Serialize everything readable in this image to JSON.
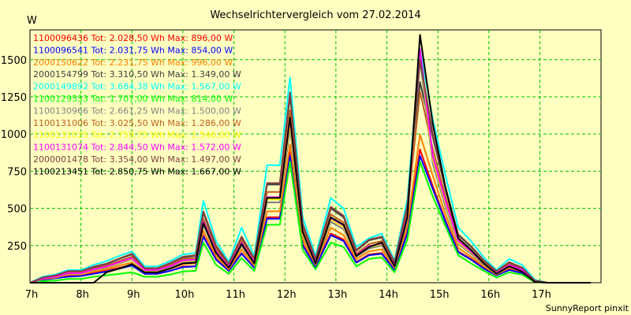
{
  "chart_data": {
    "type": "line",
    "title": "Wechselrichtervergleich vom 27.02.2014",
    "ylabel": "W",
    "footer": "SunnyReport pinxit",
    "ylim": [
      0,
      1700
    ],
    "xlim": [
      7,
      18.2
    ],
    "y_ticks": [
      250,
      500,
      750,
      1000,
      1250,
      1500
    ],
    "y_tick_labels": [
      "250",
      "500",
      "750",
      "1000",
      "1250",
      "1500"
    ],
    "x_ticks": [
      7,
      8,
      9,
      10,
      11,
      12,
      13,
      14,
      15,
      16,
      17
    ],
    "x_tick_labels": [
      "7h",
      "8h",
      "9h",
      "10h",
      "11h",
      "12h",
      "13h",
      "14h",
      "15h",
      "16h",
      "17h"
    ],
    "grid": true,
    "legend_placement": "top-left",
    "x": [
      7.0,
      7.25,
      7.5,
      7.75,
      8.0,
      8.25,
      8.5,
      8.75,
      9.0,
      9.25,
      9.5,
      9.75,
      10.0,
      10.25,
      10.4,
      10.65,
      10.9,
      11.15,
      11.4,
      11.65,
      11.9,
      12.1,
      12.35,
      12.6,
      12.9,
      13.15,
      13.4,
      13.65,
      13.9,
      14.15,
      14.4,
      14.65,
      14.9,
      15.15,
      15.4,
      15.65,
      15.9,
      16.15,
      16.4,
      16.65,
      16.9,
      17.15,
      17.4,
      17.65,
      18.0
    ],
    "series": [
      {
        "name": "1100096436 Tot: 2.028,50 Wh Max: 896,00 W",
        "color": "#ff0000",
        "values": [
          0,
          20,
          30,
          45,
          45,
          65,
          80,
          100,
          120,
          60,
          60,
          80,
          110,
          110,
          320,
          160,
          80,
          200,
          100,
          440,
          440,
          880,
          260,
          110,
          330,
          290,
          140,
          190,
          200,
          90,
          340,
          896,
          650,
          420,
          210,
          160,
          100,
          50,
          90,
          70,
          10,
          0,
          0,
          0,
          0
        ]
      },
      {
        "name": "1100096541 Tot: 2.031,75 Wh Max: 854,00 W",
        "color": "#0000ff",
        "values": [
          0,
          20,
          30,
          40,
          45,
          60,
          75,
          95,
          115,
          60,
          60,
          80,
          105,
          110,
          310,
          155,
          80,
          195,
          100,
          430,
          430,
          854,
          250,
          105,
          320,
          280,
          135,
          185,
          195,
          85,
          330,
          854,
          630,
          410,
          205,
          155,
          95,
          50,
          85,
          65,
          10,
          0,
          0,
          0,
          0
        ]
      },
      {
        "name": "2000150622 Tot: 2.231,75 Wh Max: 996,00 W",
        "color": "#ff8000",
        "values": [
          0,
          25,
          35,
          55,
          55,
          75,
          90,
          115,
          135,
          70,
          70,
          95,
          125,
          130,
          350,
          180,
          90,
          225,
          115,
          480,
          480,
          930,
          290,
          120,
          370,
          320,
          160,
          210,
          225,
          100,
          380,
          996,
          720,
          460,
          235,
          175,
          110,
          55,
          100,
          75,
          10,
          0,
          0,
          0,
          0
        ]
      },
      {
        "name": "2000154799 Tot: 3.310,50 Wh Max: 1.349,00 W",
        "color": "#404040",
        "values": [
          0,
          35,
          50,
          75,
          75,
          105,
          125,
          160,
          190,
          95,
          95,
          130,
          170,
          180,
          470,
          245,
          125,
          305,
          160,
          660,
          660,
          1260,
          390,
          160,
          500,
          440,
          215,
          285,
          305,
          135,
          515,
          1349,
          980,
          630,
          320,
          240,
          150,
          75,
          135,
          100,
          15,
          0,
          0,
          0,
          0
        ]
      },
      {
        "name": "2000149892 Tot: 3.684,38 Wh Max: 1.567,00 W",
        "color": "#00ffff",
        "values": [
          0,
          40,
          55,
          85,
          85,
          120,
          145,
          180,
          210,
          110,
          110,
          145,
          190,
          200,
          550,
          280,
          140,
          370,
          180,
          790,
          790,
          1380,
          440,
          180,
          570,
          500,
          240,
          300,
          330,
          150,
          560,
          1567,
          1100,
          720,
          370,
          280,
          170,
          85,
          160,
          120,
          20,
          0,
          0,
          0,
          0
        ]
      },
      {
        "name": "1100129553 Tot: 1.707,00 Wh Max: 814,00 W",
        "color": "#00ff00",
        "values": [
          0,
          10,
          15,
          25,
          25,
          40,
          50,
          60,
          70,
          40,
          40,
          55,
          75,
          80,
          270,
          120,
          60,
          165,
          80,
          390,
          390,
          814,
          220,
          90,
          270,
          240,
          110,
          160,
          170,
          70,
          290,
          814,
          580,
          380,
          185,
          130,
          80,
          35,
          70,
          55,
          5,
          0,
          0,
          0,
          0
        ]
      },
      {
        "name": "1100130966 Tot: 2.661,25 Wh Max: 1.500,00 W",
        "color": "#808080",
        "values": [
          0,
          30,
          40,
          60,
          60,
          85,
          100,
          130,
          155,
          80,
          80,
          105,
          140,
          145,
          390,
          200,
          100,
          250,
          130,
          540,
          540,
          1030,
          320,
          130,
          410,
          360,
          175,
          230,
          250,
          110,
          420,
          1500,
          800,
          510,
          260,
          195,
          120,
          60,
          110,
          80,
          10,
          0,
          0,
          0,
          0
        ]
      },
      {
        "name": "1100131006 Tot: 3.025,50 Wh Max: 1.286,00 W",
        "color": "#c06020",
        "values": [
          0,
          30,
          45,
          70,
          70,
          95,
          115,
          145,
          175,
          90,
          90,
          120,
          160,
          165,
          430,
          225,
          115,
          285,
          145,
          610,
          610,
          1160,
          360,
          145,
          460,
          405,
          195,
          260,
          280,
          125,
          475,
          1286,
          900,
          580,
          295,
          220,
          135,
          70,
          125,
          90,
          15,
          0,
          0,
          0,
          0
        ]
      },
      {
        "name": "1100131025 Tot: 2.759,75 Wh Max: 1.546,00 W",
        "color": "#ffff00",
        "values": [
          0,
          28,
          42,
          62,
          62,
          88,
          105,
          135,
          160,
          82,
          82,
          110,
          145,
          150,
          400,
          205,
          105,
          260,
          135,
          560,
          560,
          1070,
          330,
          135,
          425,
          375,
          180,
          240,
          260,
          115,
          440,
          1546,
          830,
          535,
          270,
          205,
          125,
          62,
          115,
          85,
          12,
          0,
          0,
          0,
          0
        ]
      },
      {
        "name": "1100131074 Tot: 2.844,50 Wh Max: 1.572,00 W",
        "color": "#ff00ff",
        "values": [
          0,
          28,
          42,
          64,
          64,
          90,
          108,
          138,
          165,
          85,
          85,
          112,
          150,
          155,
          410,
          210,
          108,
          268,
          138,
          575,
          575,
          1100,
          340,
          138,
          435,
          385,
          185,
          245,
          265,
          118,
          450,
          1572,
          850,
          550,
          280,
          210,
          128,
          64,
          118,
          88,
          12,
          0,
          0,
          0,
          0
        ]
      },
      {
        "name": "2000001478 Tot: 3.354,00 Wh Max: 1.497,00 W",
        "color": "#804040",
        "values": [
          0,
          35,
          50,
          78,
          78,
          108,
          128,
          162,
          195,
          98,
          98,
          132,
          175,
          185,
          480,
          250,
          128,
          310,
          162,
          670,
          670,
          1280,
          395,
          162,
          510,
          450,
          220,
          290,
          310,
          138,
          520,
          1497,
          1000,
          640,
          325,
          245,
          152,
          78,
          138,
          102,
          15,
          0,
          0,
          0,
          0
        ]
      },
      {
        "name": "1100213451 Tot: 2.850,75 Wh Max: 1.667,00 W",
        "color": "#000000",
        "values": [
          0,
          0,
          0,
          0,
          0,
          0,
          70,
          95,
          125,
          70,
          70,
          95,
          130,
          135,
          400,
          200,
          100,
          260,
          130,
          570,
          570,
          1110,
          340,
          130,
          440,
          390,
          180,
          240,
          270,
          110,
          440,
          1667,
          1070,
          640,
          300,
          220,
          130,
          60,
          110,
          75,
          5,
          0,
          0,
          0,
          0
        ]
      }
    ]
  }
}
